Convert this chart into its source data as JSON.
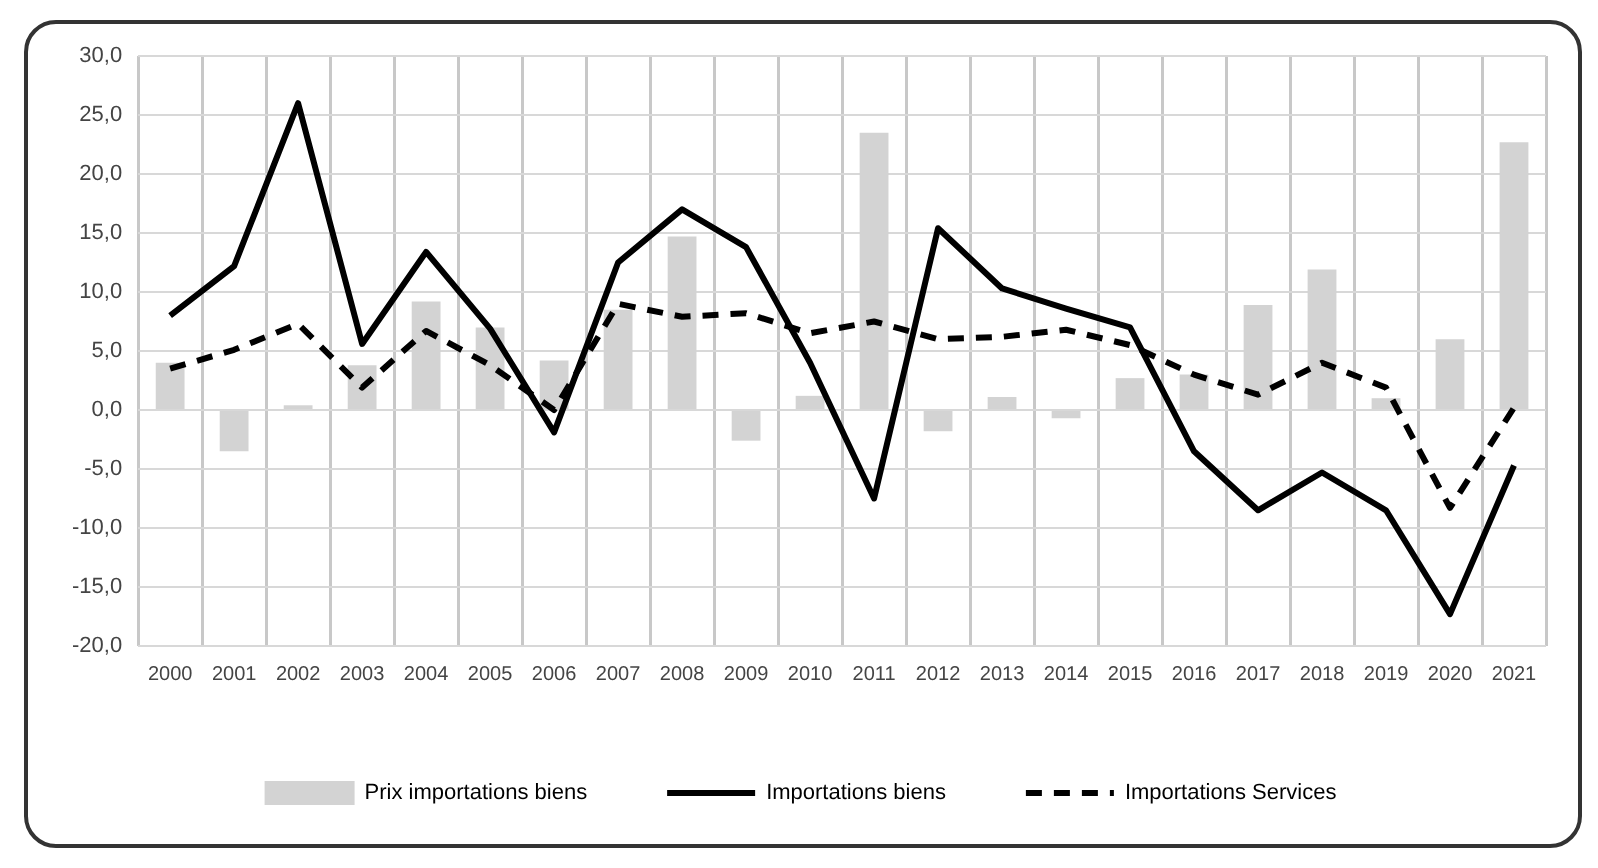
{
  "chart_data": {
    "type": "bar",
    "categories": [
      "2000",
      "2001",
      "2002",
      "2003",
      "2004",
      "2005",
      "2006",
      "2007",
      "2008",
      "2009",
      "2010",
      "2011",
      "2012",
      "2013",
      "2014",
      "2015",
      "2016",
      "2017",
      "2018",
      "2019",
      "2020",
      "2021"
    ],
    "series": [
      {
        "name": "Prix importations biens",
        "color": "#d3d3d3",
        "values": [
          4.0,
          -3.5,
          0.4,
          3.8,
          9.2,
          7.0,
          4.2,
          8.5,
          14.7,
          -2.6,
          1.2,
          23.5,
          -1.8,
          1.1,
          -0.7,
          2.7,
          3.0,
          8.9,
          11.9,
          1.0,
          6.0,
          22.7
        ]
      },
      {
        "name": "Importations biens",
        "type": "line",
        "color": "#000000",
        "line_style": "solid",
        "values": [
          8.0,
          12.2,
          26.0,
          5.6,
          13.4,
          6.9,
          -1.9,
          12.5,
          17.0,
          13.8,
          4.0,
          -7.5,
          15.4,
          10.3,
          8.6,
          7.0,
          -3.5,
          -8.5,
          -5.3,
          -8.5,
          -17.3,
          -4.7
        ]
      },
      {
        "name": "Importations Services",
        "type": "line",
        "color": "#000000",
        "line_style": "dashed",
        "values": [
          3.5,
          5.1,
          7.3,
          1.9,
          6.7,
          3.8,
          0.0,
          9.0,
          7.9,
          8.2,
          6.5,
          7.5,
          6.0,
          6.2,
          6.8,
          5.5,
          3.0,
          1.3,
          4.0,
          1.9,
          -8.3,
          0.2
        ]
      }
    ],
    "ylim": [
      -20,
      30
    ],
    "yticks": [
      {
        "value": -20,
        "label": "-20,0"
      },
      {
        "value": -15,
        "label": "-15,0"
      },
      {
        "value": -10,
        "label": "-10,0"
      },
      {
        "value": -5,
        "label": "-5,0"
      },
      {
        "value": 0,
        "label": "0,0"
      },
      {
        "value": 5,
        "label": "5,0"
      },
      {
        "value": 10,
        "label": "10,0"
      },
      {
        "value": 15,
        "label": "15,0"
      },
      {
        "value": 20,
        "label": "20,0"
      },
      {
        "value": 25,
        "label": "25,0"
      },
      {
        "value": 30,
        "label": "30,0"
      }
    ],
    "grid": true,
    "legend": "bottom",
    "marker": "none"
  }
}
